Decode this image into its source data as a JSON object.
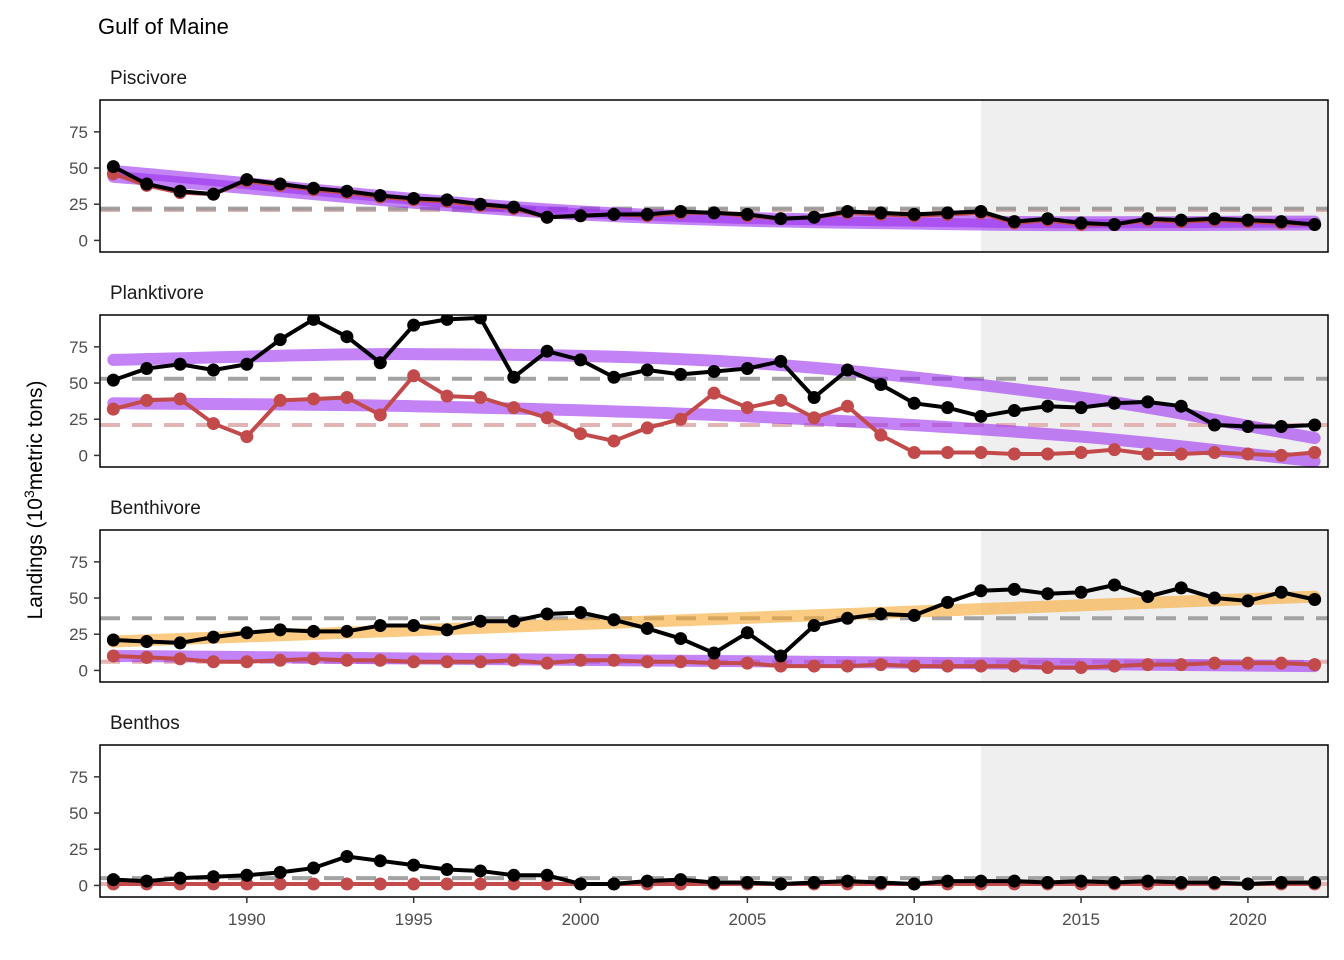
{
  "chart_data": {
    "type": "line",
    "title": "Gulf of Maine",
    "ylabel": "Landings (10^3 metric tons)",
    "ylabel_parts": {
      "before": "Landings (10",
      "sup": "3",
      "after": "metric tons)"
    },
    "xlim": [
      1985.6,
      2022.4
    ],
    "ylim": [
      -8,
      97
    ],
    "x_ticks": [
      1990,
      1995,
      2000,
      2005,
      2010,
      2015,
      2020
    ],
    "y_ticks": [
      0,
      25,
      50,
      75
    ],
    "shaded_range": [
      2012,
      2022.4
    ],
    "colors": {
      "total": "#000000",
      "commercial": "#c24a4a",
      "trend_decrease": "#9b30f0",
      "trend_increase": "#f9a830",
      "mean_total": "#999999",
      "mean_commercial": "#e2b4b4",
      "shade": "#efefef"
    },
    "years": [
      1986,
      1987,
      1988,
      1989,
      1990,
      1991,
      1992,
      1993,
      1994,
      1995,
      1996,
      1997,
      1998,
      1999,
      2000,
      2001,
      2002,
      2003,
      2004,
      2005,
      2006,
      2007,
      2008,
      2009,
      2010,
      2011,
      2012,
      2013,
      2014,
      2015,
      2016,
      2017,
      2018,
      2019,
      2020,
      2021,
      2022
    ],
    "panels": [
      {
        "name": "Piscivore",
        "total": [
          51,
          39,
          34,
          32,
          42,
          39,
          36,
          34,
          31,
          29,
          28,
          25,
          23,
          16,
          17,
          18,
          18,
          20,
          19,
          18,
          15,
          16,
          20,
          19,
          18,
          19,
          20,
          13,
          15,
          12,
          11,
          15,
          14,
          15,
          14,
          13,
          11
        ],
        "commercial": [
          46,
          38,
          33,
          32,
          41,
          38,
          35,
          33,
          30,
          28,
          27,
          24,
          22,
          16,
          17,
          18,
          17,
          19,
          19,
          17,
          15,
          16,
          19,
          18,
          17,
          18,
          19,
          12,
          14,
          11,
          11,
          14,
          13,
          14,
          13,
          12,
          11
        ],
        "mean_total": 22,
        "mean_commercial": 21,
        "trend_total": {
          "color": "decrease",
          "x": [
            1986,
            2000,
            2012,
            2022
          ],
          "y": [
            48,
            20,
            13,
            13
          ]
        },
        "trend_commercial": {
          "color": "decrease",
          "x": [
            1986,
            2000,
            2012,
            2022
          ],
          "y": [
            44,
            18,
            11,
            11
          ]
        }
      },
      {
        "name": "Planktivore",
        "total": [
          52,
          60,
          63,
          59,
          63,
          80,
          94,
          82,
          64,
          90,
          94,
          95,
          54,
          72,
          66,
          54,
          59,
          56,
          58,
          60,
          65,
          40,
          59,
          49,
          36,
          33,
          27,
          31,
          34,
          33,
          36,
          37,
          34,
          21,
          20,
          20,
          21
        ],
        "commercial": [
          32,
          38,
          39,
          22,
          13,
          38,
          39,
          40,
          28,
          55,
          41,
          40,
          33,
          26,
          15,
          10,
          19,
          25,
          43,
          33,
          38,
          26,
          34,
          14,
          2,
          2,
          2,
          1,
          1,
          2,
          4,
          1,
          1,
          2,
          1,
          0,
          2
        ],
        "mean_total": 53,
        "mean_commercial": 21,
        "trend_total": {
          "color": "decrease",
          "x": [
            1986,
            1995,
            2005,
            2015,
            2022
          ],
          "y": [
            66,
            70,
            64,
            40,
            12
          ]
        },
        "trend_commercial": {
          "color": "decrease",
          "x": [
            1986,
            1995,
            2005,
            2015,
            2022
          ],
          "y": [
            36,
            34,
            27,
            13,
            -4
          ]
        }
      },
      {
        "name": "Benthivore",
        "total": [
          21,
          20,
          19,
          23,
          26,
          28,
          27,
          27,
          31,
          31,
          28,
          34,
          34,
          39,
          40,
          35,
          29,
          22,
          12,
          26,
          10,
          31,
          36,
          39,
          38,
          47,
          55,
          56,
          53,
          54,
          59,
          51,
          57,
          50,
          48,
          54,
          49
        ],
        "commercial": [
          10,
          9,
          8,
          6,
          6,
          7,
          8,
          7,
          7,
          6,
          6,
          6,
          7,
          5,
          7,
          7,
          6,
          6,
          5,
          5,
          3,
          3,
          3,
          4,
          3,
          3,
          3,
          3,
          2,
          2,
          3,
          4,
          4,
          5,
          5,
          5,
          4
        ],
        "mean_total": 36,
        "mean_commercial": 6,
        "trend_total": {
          "color": "increase",
          "x": [
            1986,
            2022
          ],
          "y": [
            20,
            51
          ]
        },
        "trend_commercial": {
          "color": "decrease",
          "x": [
            1986,
            2022
          ],
          "y": [
            10,
            3
          ]
        }
      },
      {
        "name": "Benthos",
        "total": [
          4,
          3,
          5,
          6,
          7,
          9,
          12,
          20,
          17,
          14,
          11,
          10,
          7,
          7,
          1,
          1,
          3,
          4,
          2,
          2,
          1,
          2,
          3,
          2,
          1,
          3,
          3,
          3,
          2,
          3,
          2,
          3,
          2,
          2,
          1,
          2,
          2
        ],
        "commercial": [
          1,
          1,
          1,
          1,
          1,
          1,
          1,
          1,
          1,
          1,
          1,
          1,
          1,
          1,
          1,
          1,
          1,
          1,
          1,
          1,
          1,
          1,
          1,
          1,
          1,
          1,
          1,
          1,
          1,
          1,
          1,
          1,
          1,
          1,
          1,
          1,
          1
        ],
        "mean_total": 5,
        "mean_commercial": 1,
        "trend_total": null,
        "trend_commercial": null
      }
    ]
  }
}
